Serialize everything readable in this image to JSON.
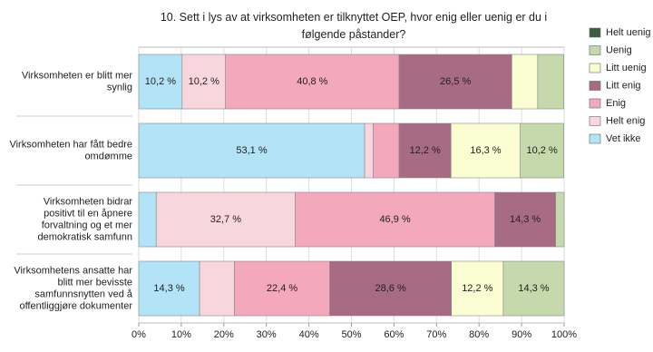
{
  "chart_data": {
    "type": "stacked-barh",
    "title": "10. Sett i lys av at virksomheten er tilknyttet OEP, hvor enig eller uenig er du i følgende påstander?",
    "categories": [
      "Virksomheten er blitt mer synlig",
      "Virksomheten har fått bedre omdømme",
      "Virksomheten bidrar positivt til en åpnere forvaltning og et mer demokratisk samfunn",
      "Virksomhetens ansatte har blitt mer bevisste samfunnsnytten ved å offentliggjøre dokumenter"
    ],
    "series": [
      {
        "name": "Vet ikke",
        "color": "#b3e3f6",
        "values": [
          10.2,
          53.1,
          4.1,
          14.3
        ],
        "value_labels": [
          "10,2 %",
          "53,1 %",
          null,
          "14,3 %"
        ]
      },
      {
        "name": "Helt enig",
        "color": "#f8d6de",
        "values": [
          10.2,
          2.0,
          32.7,
          8.2
        ],
        "value_labels": [
          "10,2 %",
          null,
          "32,7 %",
          null
        ]
      },
      {
        "name": "Enig",
        "color": "#f3a9bb",
        "values": [
          40.8,
          6.1,
          46.9,
          22.4
        ],
        "value_labels": [
          "40,8 %",
          null,
          "46,9 %",
          "22,4 %"
        ]
      },
      {
        "name": "Litt enig",
        "color": "#a86b84",
        "values": [
          26.5,
          12.2,
          14.3,
          28.6
        ],
        "value_labels": [
          "26,5 %",
          "12,2 %",
          "14,3 %",
          "28,6 %"
        ]
      },
      {
        "name": "Litt uenig",
        "color": "#fbfdd2",
        "values": [
          6.1,
          16.3,
          0,
          12.2
        ],
        "value_labels": [
          null,
          "16,3 %",
          null,
          "12,2 %"
        ]
      },
      {
        "name": "Uenig",
        "color": "#c5d9ad",
        "values": [
          6.1,
          10.2,
          2.0,
          14.3
        ],
        "value_labels": [
          null,
          "10,2 %",
          null,
          "14,3 %"
        ]
      },
      {
        "name": "Helt uenig",
        "color": "#3e5c45",
        "values": [
          0,
          0,
          0,
          0
        ]
      }
    ],
    "xlim": [
      0,
      100
    ],
    "xticks": [
      {
        "value": 0,
        "label": "0%"
      },
      {
        "value": 10,
        "label": "10%"
      },
      {
        "value": 20,
        "label": "20%"
      },
      {
        "value": 30,
        "label": "30%"
      },
      {
        "value": 40,
        "label": "40%"
      },
      {
        "value": 50,
        "label": "50%"
      },
      {
        "value": 60,
        "label": "60%"
      },
      {
        "value": 70,
        "label": "70%"
      },
      {
        "value": 80,
        "label": "80%"
      },
      {
        "value": 90,
        "label": "90%"
      },
      {
        "value": 100,
        "label": "100%"
      }
    ],
    "grid": true,
    "legend": "right"
  }
}
